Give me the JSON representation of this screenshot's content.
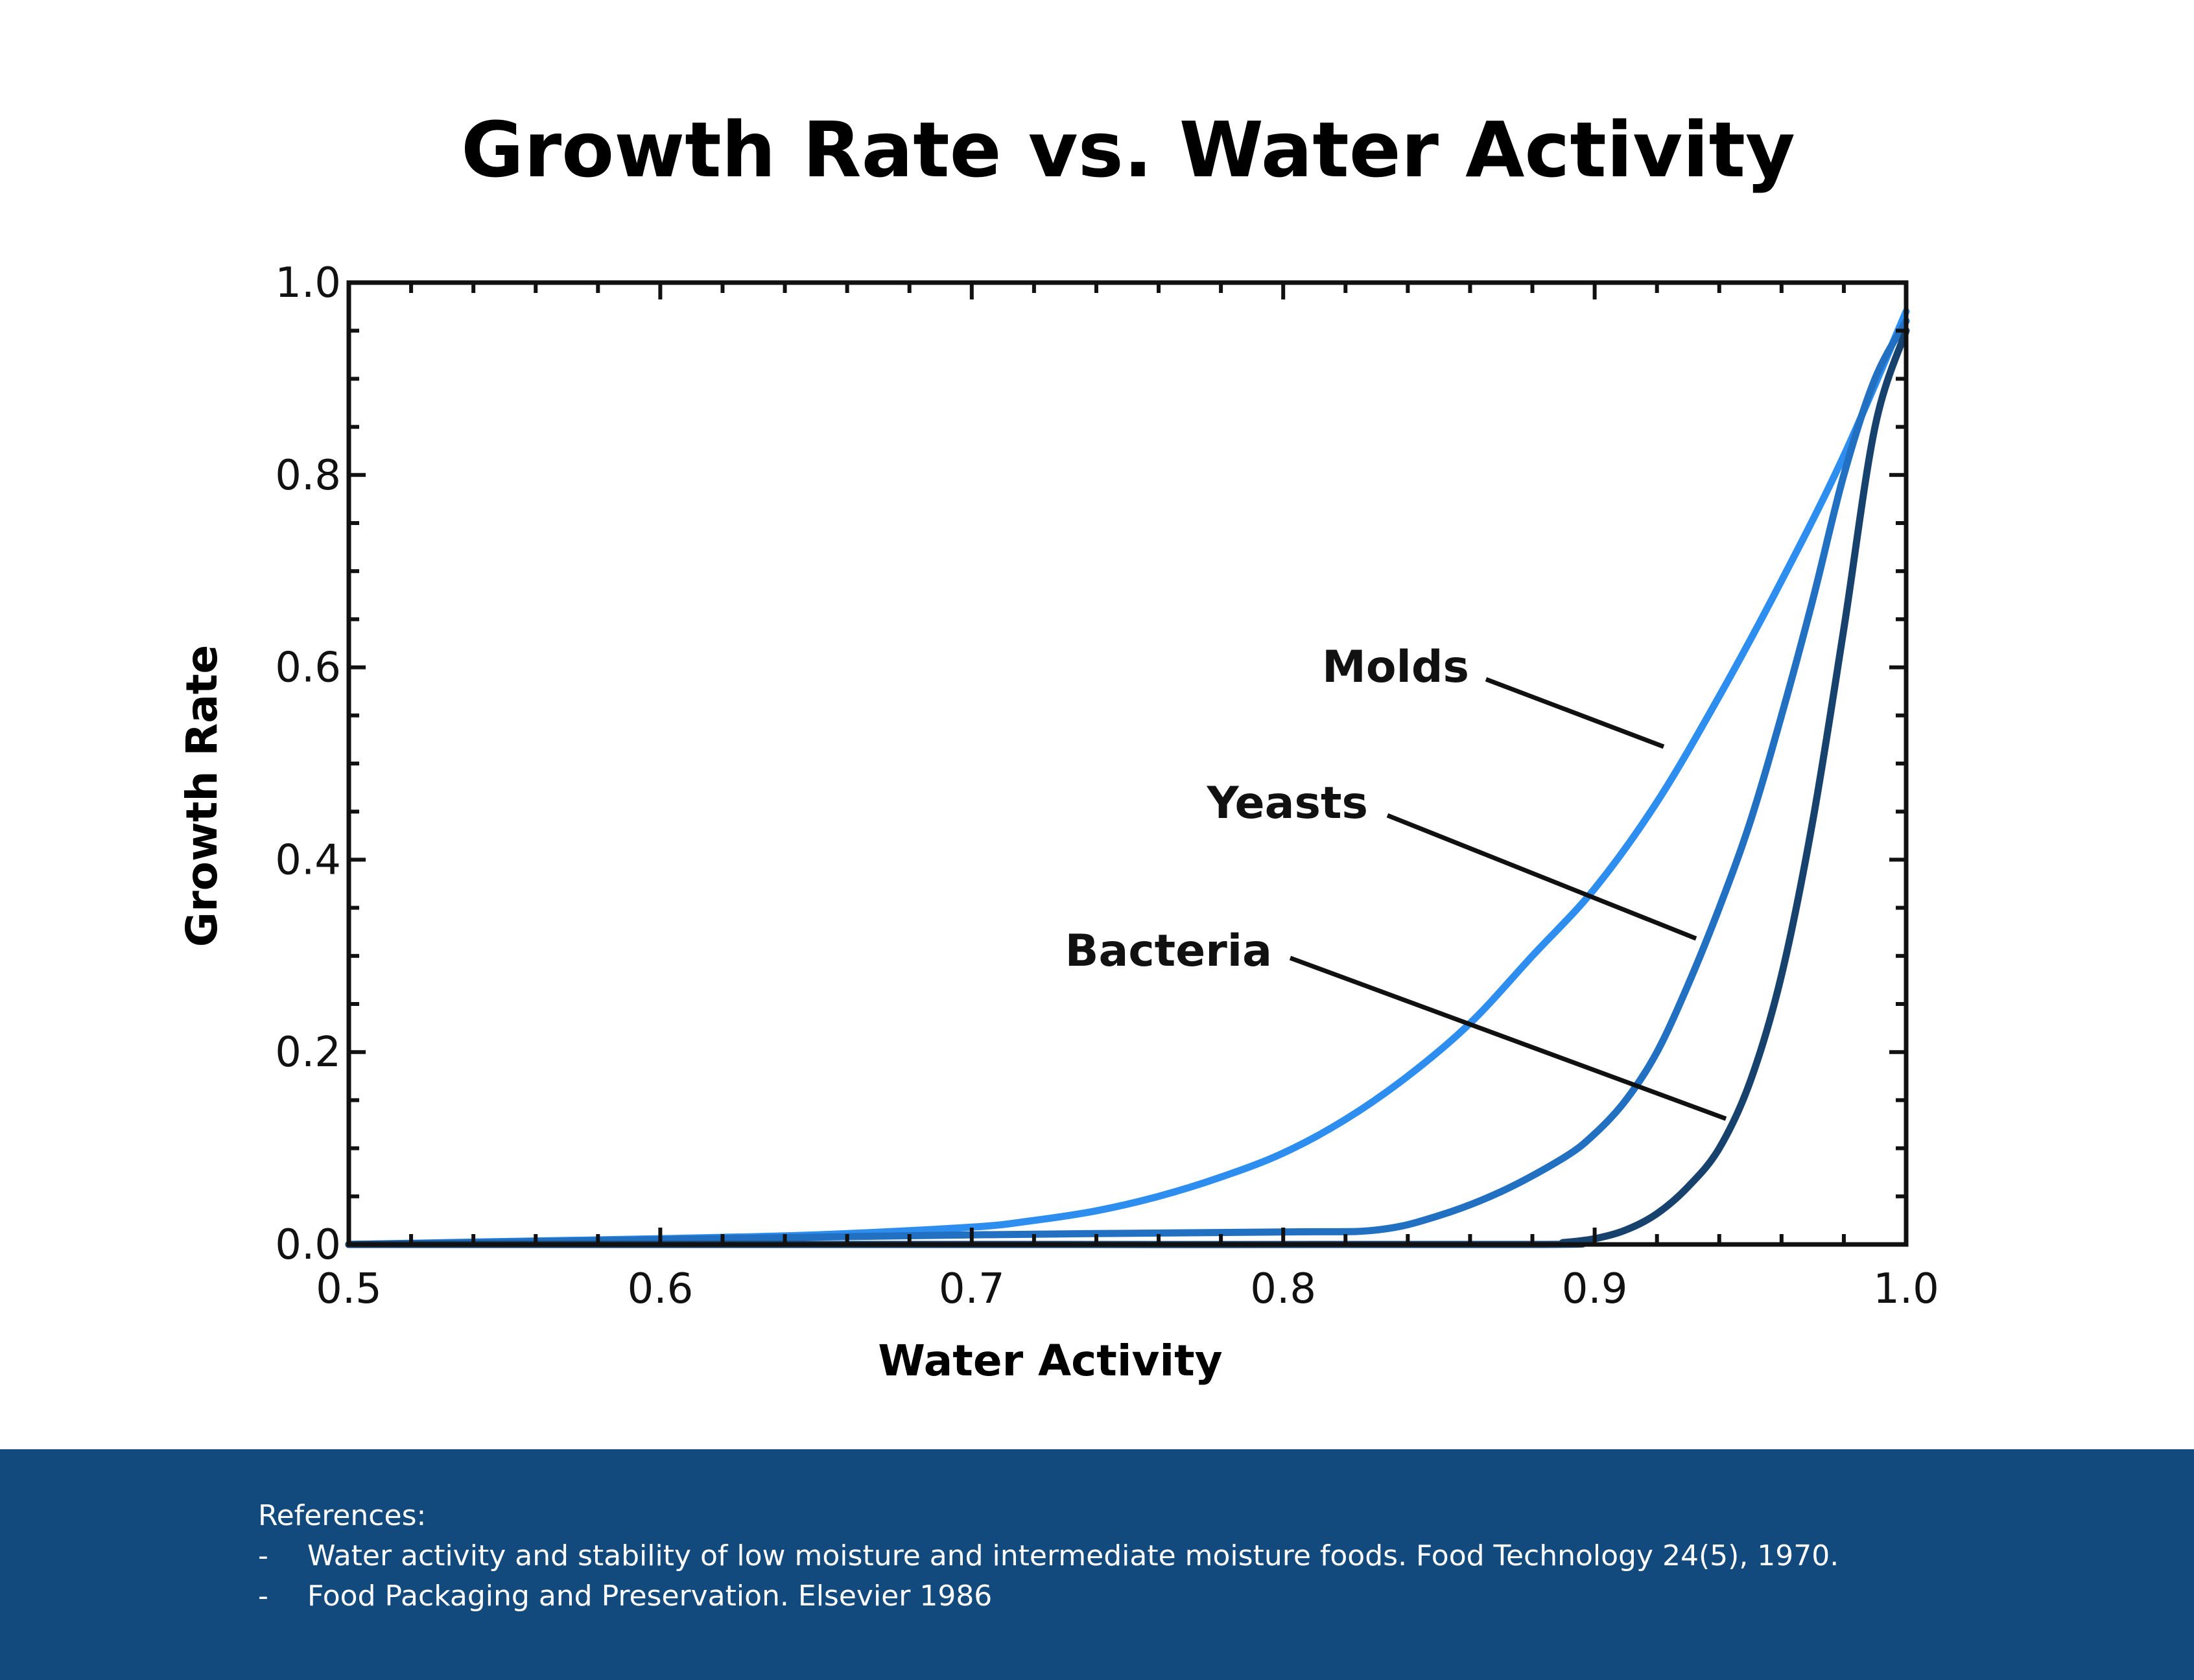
{
  "chart_data": {
    "type": "line",
    "title": "Growth Rate vs. Water Activity",
    "xlabel": "Water Activity",
    "ylabel": "Growth Rate",
    "xlim": [
      0.5,
      1.0
    ],
    "ylim": [
      0.0,
      1.0
    ],
    "x_ticks": [
      "0.5",
      "0.6",
      "0.7",
      "0.8",
      "0.9",
      "1.0"
    ],
    "y_ticks": [
      "0.0",
      "0.2",
      "0.4",
      "0.6",
      "0.8",
      "1.0"
    ],
    "grid": false,
    "legend": "none",
    "series": [
      {
        "name": "Molds",
        "color": "#2e8ef0",
        "x": [
          0.5,
          0.55,
          0.6,
          0.65,
          0.7,
          0.72,
          0.74,
          0.76,
          0.78,
          0.8,
          0.82,
          0.84,
          0.86,
          0.88,
          0.9,
          0.92,
          0.94,
          0.96,
          0.98,
          1.0
        ],
        "y": [
          0.0,
          0.003,
          0.006,
          0.01,
          0.018,
          0.025,
          0.035,
          0.05,
          0.07,
          0.095,
          0.13,
          0.175,
          0.23,
          0.3,
          0.37,
          0.46,
          0.57,
          0.69,
          0.82,
          0.97
        ]
      },
      {
        "name": "Yeasts",
        "color": "#2270c2",
        "x": [
          0.5,
          0.6,
          0.7,
          0.8,
          0.83,
          0.85,
          0.87,
          0.89,
          0.9,
          0.91,
          0.92,
          0.93,
          0.94,
          0.95,
          0.96,
          0.97,
          0.98,
          0.99,
          1.0
        ],
        "y": [
          0.0,
          0.005,
          0.01,
          0.013,
          0.015,
          0.03,
          0.055,
          0.09,
          0.115,
          0.15,
          0.2,
          0.27,
          0.35,
          0.44,
          0.55,
          0.67,
          0.8,
          0.9,
          0.96
        ]
      },
      {
        "name": "Bacteria",
        "color": "#18426e",
        "x": [
          0.5,
          0.7,
          0.88,
          0.89,
          0.9,
          0.91,
          0.92,
          0.93,
          0.94,
          0.95,
          0.96,
          0.97,
          0.98,
          0.99,
          1.0
        ],
        "y": [
          0.0,
          0.0,
          0.0,
          0.002,
          0.006,
          0.015,
          0.032,
          0.06,
          0.1,
          0.17,
          0.28,
          0.44,
          0.64,
          0.85,
          0.95
        ]
      }
    ],
    "annotations": [
      {
        "text": "Molds",
        "target_series": "Molds"
      },
      {
        "text": "Yeasts",
        "target_series": "Yeasts"
      },
      {
        "text": "Bacteria",
        "target_series": "Bacteria"
      }
    ]
  },
  "footer": {
    "heading": "References:",
    "items": [
      {
        "bullet": "-",
        "text": "Water activity and stability of low moisture and intermediate moisture foods. Food Technology 24(5), 1970."
      },
      {
        "bullet": "-",
        "text": "Food Packaging and Preservation. Elsevier 1986"
      }
    ],
    "background_color": "#134a7e"
  }
}
